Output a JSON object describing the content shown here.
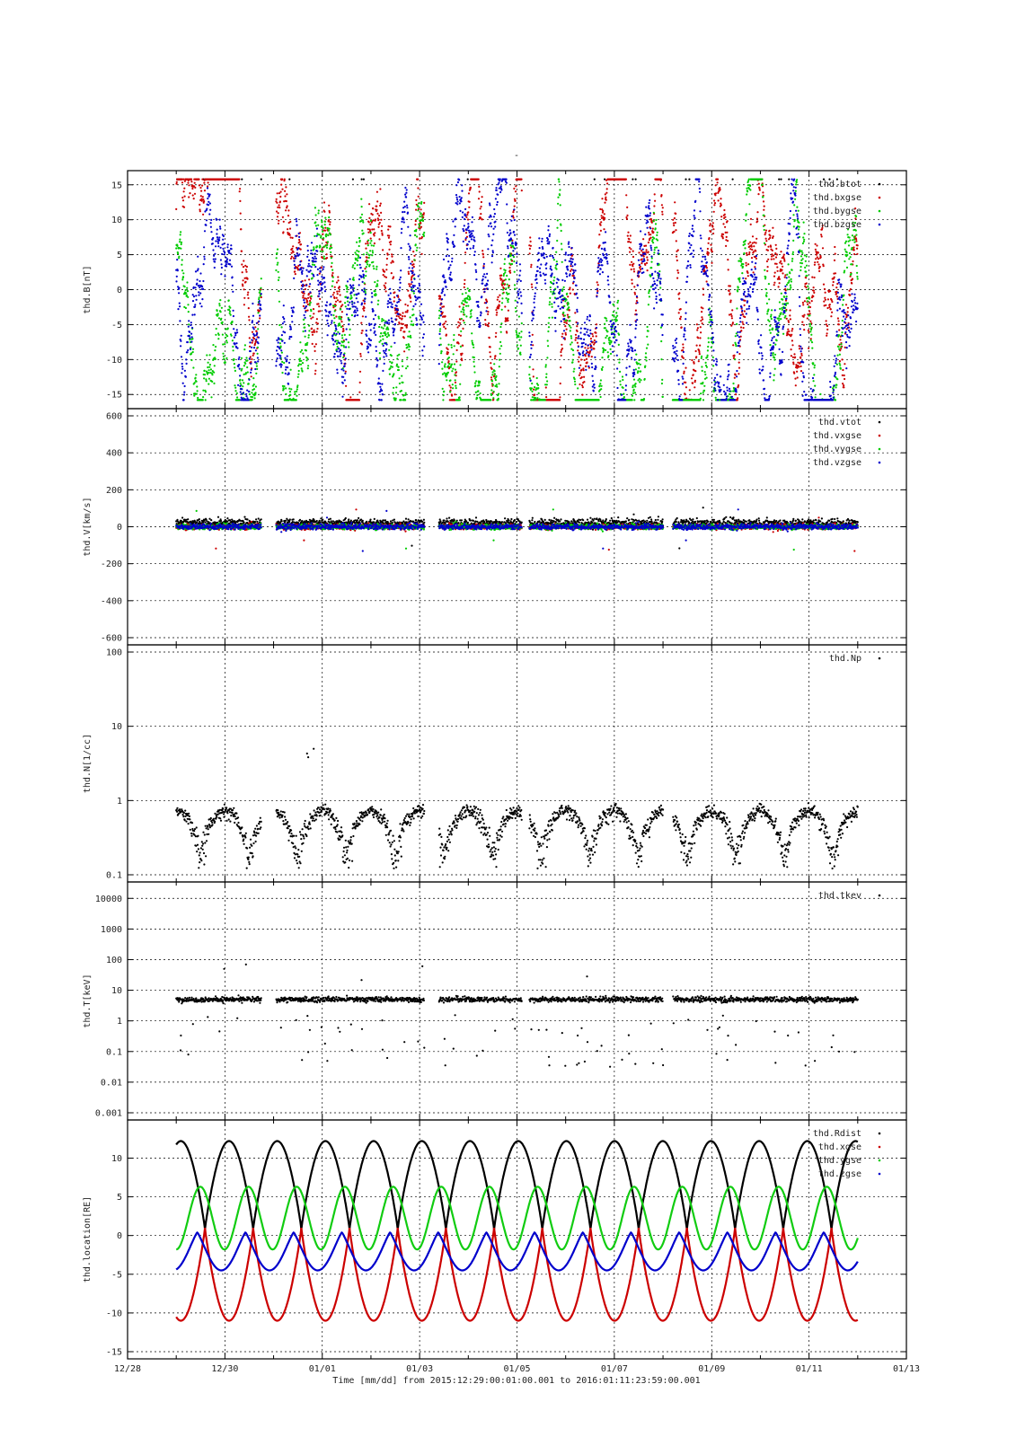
{
  "page": {
    "title": "-",
    "x_axis_label": "Time [mm/dd]  from 2015:12:29:00:01:00.001  to  2016:01:11:23:59:00.001",
    "x_tick_labels": [
      "12/28",
      "12/30",
      "01/01",
      "01/03",
      "01/05",
      "01/07",
      "01/09",
      "01/11",
      "01/13"
    ]
  },
  "chart_data": [
    {
      "type": "scatter",
      "ylabel": "thd.B[nT]",
      "x_range_days": [
        0,
        16
      ],
      "ylim": [
        -16,
        16
      ],
      "yticks": [
        15,
        10,
        5,
        0,
        -5,
        -10,
        -15
      ],
      "grid": true,
      "legend_position": "top-right",
      "series": [
        {
          "name": "thd.btot",
          "color": "#000000"
        },
        {
          "name": "thd.bxgse",
          "color": "#cc0000"
        },
        {
          "name": "thd.bygse",
          "color": "#00cc00"
        },
        {
          "name": "thd.bzgse",
          "color": "#0000cc"
        }
      ]
    },
    {
      "type": "scatter",
      "ylabel": "thd.V[km/s]",
      "ylim": [
        -600,
        600
      ],
      "yticks": [
        600,
        400,
        200,
        0,
        -200,
        -400,
        -600
      ],
      "grid": true,
      "legend_position": "top-right",
      "series": [
        {
          "name": "thd.vtot",
          "color": "#000000"
        },
        {
          "name": "thd.vxgse",
          "color": "#cc0000"
        },
        {
          "name": "thd.vygse",
          "color": "#00cc00"
        },
        {
          "name": "thd.vzgse",
          "color": "#0000cc"
        }
      ]
    },
    {
      "type": "scatter",
      "ylabel": "thd.N[1/cc]",
      "yscale": "log",
      "ylim": [
        0.1,
        100
      ],
      "yticks": [
        100,
        10,
        1,
        0.1
      ],
      "grid": true,
      "legend_position": "top-right",
      "series": [
        {
          "name": "thd.Np",
          "color": "#000000"
        }
      ]
    },
    {
      "type": "scatter",
      "ylabel": "thd.T[keV]",
      "yscale": "log",
      "ylim": [
        0.001,
        20000
      ],
      "yticks": [
        10000,
        1000,
        100,
        10,
        1,
        0.1,
        0.01,
        0.001
      ],
      "grid": true,
      "legend_position": "top-right",
      "series": [
        {
          "name": "thd.tkev",
          "color": "#000000"
        }
      ]
    },
    {
      "type": "line",
      "ylabel": "thd.location[RE]",
      "ylim": [
        -15,
        14
      ],
      "yticks": [
        10,
        5,
        0,
        -5,
        -10,
        -15
      ],
      "grid": true,
      "legend_position": "top-right",
      "orbit_period_days": 0.99,
      "series": [
        {
          "name": "thd.Rdist",
          "color": "#000000",
          "max": 12.2,
          "min": 0.8
        },
        {
          "name": "thd.xgse",
          "color": "#cc0000",
          "max": 1.0,
          "min": -11.0
        },
        {
          "name": "thd.ygse",
          "color": "#11cc11",
          "max": 6.3,
          "min": -1.8
        },
        {
          "name": "thd.zgse",
          "color": "#0000cc",
          "max": 0.4,
          "min": -4.5
        }
      ]
    }
  ]
}
